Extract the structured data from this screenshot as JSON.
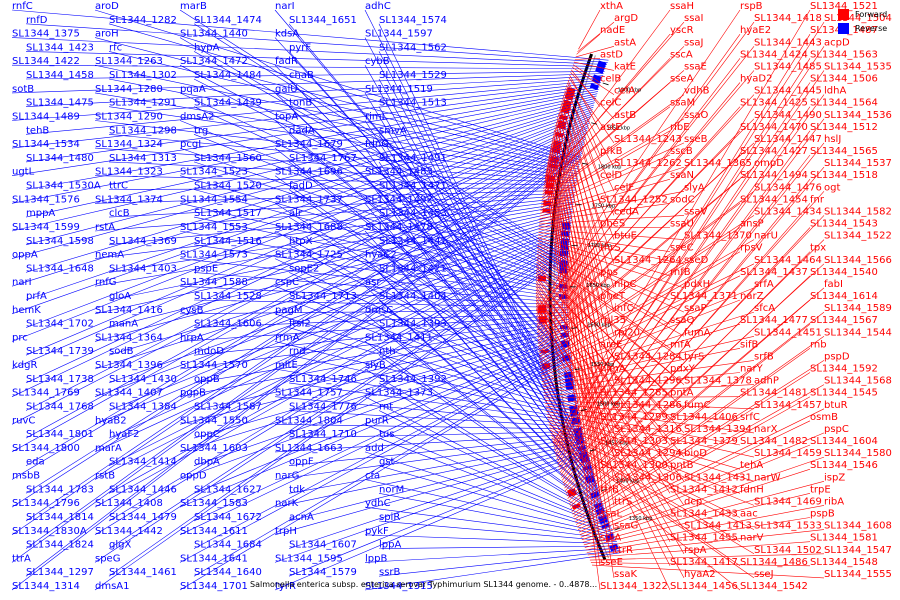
{
  "caption": "Salmonella enterica subsp. enterica serovar Typhimurium SL1344 genome. - 0..4878...",
  "legend": [
    {
      "label": "Forward",
      "color": "#ff0000"
    },
    {
      "label": "Reverse",
      "color": "#0000ff"
    }
  ],
  "colors": {
    "forward": "#ff0000",
    "reverse": "#0000ff",
    "backbone": "#000000"
  },
  "ticks": [
    "1350 kbp",
    "1400 kbp",
    "1450 kbp",
    "1500 kbp",
    "1550 kbp",
    "1600 kbp",
    "1650 kbp",
    "1700 kbp",
    "1750 kbp",
    "1800 kbp",
    "1850 kbp",
    "1900 kbp"
  ],
  "reverse_genes": [
    "rnfC",
    "rnfD",
    "SL1344_1375",
    "SL1344_1423",
    "SL1344_1422",
    "SL1344_1458",
    "sotB",
    "SL1344_1475",
    "SL1344_1489",
    "tehB",
    "SL1344_1534",
    "SL1344_1480",
    "ugtL",
    "SL1344_1530A",
    "SL1344_1576",
    "mppA",
    "SL1344_1599",
    "SL1344_1598",
    "oppA",
    "SL1344_1648",
    "narI",
    "prfA",
    "hemK",
    "SL1344_1702",
    "prc",
    "SL1344_1739",
    "kdgR",
    "SL1344_1738",
    "SL1344_1769",
    "SL1344_1768",
    "ruvC",
    "SL1344_1801",
    "SL1344_1800",
    "eda",
    "msbB",
    "SL1344_1783",
    "SL1344_1796",
    "SL1344_1814",
    "SL1344_1830A",
    "SL1344_1824",
    "ttrA",
    "SL1344_1297",
    "SL1344_1314",
    "aroD",
    "SL1344_1282",
    "aroH",
    "rfc",
    "SL1344_1263",
    "SL1344_1302",
    "SL1344_1280",
    "SL1344_1291",
    "SL1344_1290",
    "SL1344_1298",
    "SL1344_1324",
    "SL1344_1313",
    "SL1344_1323",
    "ttrC",
    "SL1344_1374",
    "clcB",
    "rstA",
    "SL1344_1369",
    "nemA",
    "SL1344_1403",
    "rnfG",
    "gloA",
    "SL1344_1416",
    "manA",
    "SL1344_1364",
    "sodB",
    "SL1344_1396",
    "SL1344_1430",
    "SL1344_1407",
    "SL1344_1384",
    "hyaB2",
    "hyaF2",
    "marA",
    "SL1344_1414",
    "rstB",
    "SL1344_1446",
    "SL1344_1408",
    "SL1344_1479",
    "SL1344_1442",
    "glgX",
    "speG",
    "SL1344_1461",
    "dmsA1",
    "marB",
    "SL1344_1474",
    "SL1344_1440",
    "hypA",
    "SL1344_1472",
    "SL1344_1484",
    "pqaA",
    "SL1344_1439",
    "dmsA2",
    "trg",
    "pcgL",
    "SL1344_1560",
    "SL1344_1523",
    "SL1344_1520",
    "SL1344_1554",
    "SL1344_1517",
    "SL1344_1553",
    "SL1344_1516",
    "SL1344_1573",
    "pspE",
    "SL1344_1588",
    "SL1344_1528",
    "cysB",
    "SL1344_1606",
    "hrpA",
    "mdoD",
    "SL1344_1570",
    "oppB",
    "pgpB",
    "SL1344_1587",
    "SL1344_1550",
    "oppC",
    "SL1344_1603",
    "dbpA",
    "oppD",
    "SL1344_1627",
    "SL1344_1583",
    "SL1344_1672",
    "SL1344_1611",
    "SL1344_1684",
    "SL1344_1641",
    "SL1344_1640",
    "SL1344_1701",
    "narI",
    "SL1344_1651",
    "kdsA",
    "pyrF",
    "fadR",
    "chaB",
    "galU",
    "tonB",
    "topA",
    "dadA",
    "SL1344_1679",
    "SL1344_1767",
    "SL1344_1696",
    "fadD",
    "SL1344_1737",
    "alr",
    "SL1344_1688",
    "htpX",
    "SL1344_1725",
    "sopE2",
    "cspC",
    "SL1344_1713",
    "pagM",
    "ftsI2",
    "rrmA",
    "rnd",
    "mltE",
    "SL1344_1746",
    "SL1344_1757",
    "SL1344_1776",
    "SL1344_1804",
    "SL1344_1710",
    "SL1344_1663",
    "oppF",
    "narG",
    "tdk",
    "narK",
    "acnA",
    "trpH",
    "SL1344_1607",
    "SL1344_1595",
    "SL1344_1579",
    "tyrR",
    "adhC",
    "SL1344_1574",
    "SL1344_1597",
    "SL1344_1562",
    "cybB",
    "SL1344_1529",
    "SL1344_1519",
    "SL1344_1513",
    "rimL",
    "smvA",
    "fdnG",
    "SL1344_1491",
    "SL1344_1483",
    "SL1344_1471",
    "SL1344_1492",
    "SL1344_1453",
    "SL1344_1478",
    "SL1344_1441",
    "hyaC2",
    "SL1344_1421",
    "asr",
    "SL1344_1404",
    "dmsC",
    "SL1344_1393",
    "SL1344_1411",
    "nth",
    "slyB",
    "SL1344_1392",
    "SL1344_1373",
    "rnt",
    "purR",
    "tus",
    "add",
    "gst",
    "cfa",
    "norM",
    "ydhC",
    "spiR",
    "pykF",
    "lppA",
    "lppB",
    "ssrB",
    "SL1344_1315"
  ],
  "forward_genes": [
    "xthA",
    "argD",
    "nadE",
    "astA",
    "astD",
    "katE",
    "celB",
    "celA",
    "celC",
    "astB",
    "astE",
    "SL1344_1243",
    "pfkB",
    "SL1344_1262",
    "celD",
    "celF",
    "SL1344_1252",
    "cedA",
    "pheS",
    "btuE",
    "thrS",
    "SL1344_1264",
    "pps",
    "nlpC",
    "pheT",
    "infC",
    "rpl35",
    "rpl20",
    "aroE",
    "SL1344_1284",
    "himA",
    "SL1344_1296",
    "SL1344_1285",
    "SL1344_1286",
    "SL1344_1299",
    "SL1344_1316",
    "SL1344_1303",
    "SL1344_1294",
    "SL1344_1300",
    "SL1344_1306",
    "ttrB",
    "ttrS",
    "ssaL",
    "ssaG",
    "spiA",
    "ttrR",
    "sseE",
    "ssaK",
    "SL1344_1322",
    "ssaH",
    "ssaI",
    "yscR",
    "ssaJ",
    "sscA",
    "ssaE",
    "sseA",
    "vdhB",
    "ssaM",
    "ssaO",
    "ribE",
    "sseB",
    "sscB",
    "SL1344_1365",
    "ssaN",
    "slyA",
    "sodC",
    "ssaV",
    "ssaU",
    "SL1344_1370",
    "sseC",
    "sseD",
    "rnfB",
    "pdxH",
    "SL1344_1371",
    "ssaP",
    "ssaQ",
    "fumA",
    "rnfA",
    "tyrS",
    "pdxY",
    "SL1344_1378",
    "pntA",
    "fumC",
    "SL1344_1406",
    "SL1344_1394",
    "SL1344_1379",
    "bioD",
    "pntB",
    "SL1344_1431",
    "SL1344_1412",
    "dcp",
    "SL1344_1433",
    "SL1344_1413",
    "SL1344_1455",
    "rspA",
    "SL1344_1417",
    "hyaA2",
    "SL1344_1456",
    "rspB",
    "SL1344_1418",
    "hyaE2",
    "SL1344_1443",
    "SL1344_1424",
    "SL1344_1485",
    "hyaD2",
    "SL1344_1445",
    "SL1344_1425",
    "SL1344_1490",
    "SL1344_1470",
    "SL1344_1447",
    "SL1344_1427",
    "ompD",
    "SL1344_1494",
    "SL1344_1476",
    "SL1344_1454",
    "SL1344_1434",
    "ansP",
    "narU",
    "rpsV",
    "SL1344_1464",
    "SL1344_1437",
    "srfA",
    "narZ",
    "sfcA",
    "SL1344_1477",
    "SL1344_1451",
    "sifB",
    "srfB",
    "narY",
    "adhP",
    "SL1344_1481",
    "SL1344_1457",
    "srfC",
    "narX",
    "SL1344_1482",
    "SL1344_1459",
    "tehA",
    "narW",
    "fdnH",
    "SL1344_1469",
    "aac",
    "SL1344_1533",
    "narV",
    "SL1344_1502",
    "SL1344_1486",
    "sseJ",
    "SL1344_1542",
    "SL1344_1521",
    "SL1344_1504",
    "SL1344_1487",
    "acpD",
    "SL1344_1563",
    "SL1344_1535",
    "SL1344_1506",
    "ldhA",
    "SL1344_1564",
    "SL1344_1536",
    "SL1344_1512",
    "hslJ",
    "SL1344_1565",
    "SL1344_1537",
    "SL1344_1518",
    "ogt",
    "fnr",
    "SL1344_1582",
    "SL1344_1543",
    "SL1344_1522",
    "tpx",
    "SL1344_1566",
    "SL1344_1540",
    "fabI",
    "SL1344_1614",
    "SL1344_1589",
    "SL1344_1567",
    "SL1344_1544",
    "rnb",
    "pspD",
    "SL1344_1592",
    "SL1344_1568",
    "SL1344_1545",
    "btuR",
    "osmB",
    "pspC",
    "SL1344_1604",
    "SL1344_1580",
    "SL1344_1546",
    "ispZ",
    "trpE",
    "ribA",
    "pspB",
    "SL1344_1608",
    "SL1344_1581",
    "SL1344_1547",
    "SL1344_1548",
    "SL1344_1555"
  ]
}
